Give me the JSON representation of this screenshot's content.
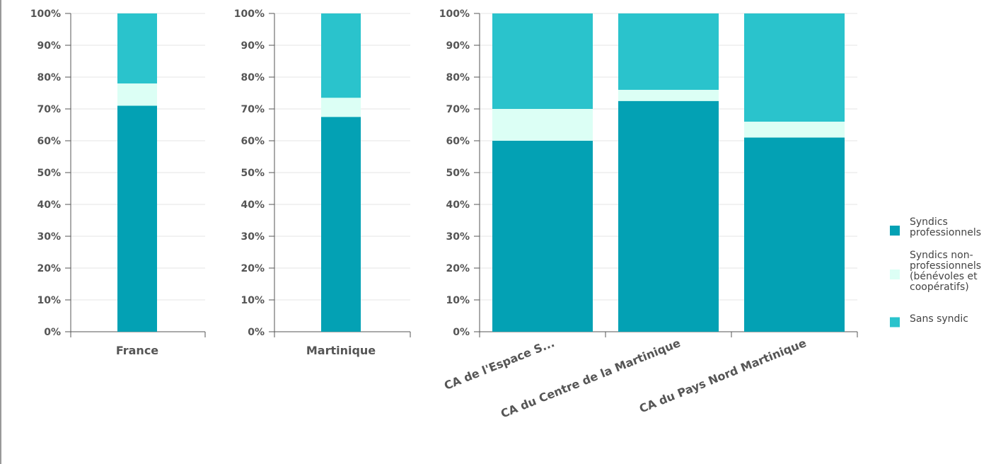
{
  "chart_data": {
    "type": "bar",
    "stacked": true,
    "percent": true,
    "ylim": [
      0,
      100
    ],
    "y_ticks": [
      "0%",
      "10%",
      "20%",
      "30%",
      "40%",
      "50%",
      "60%",
      "70%",
      "80%",
      "90%",
      "100%"
    ],
    "grid": true,
    "legend": "right",
    "series": [
      {
        "name_lines": [
          "Syndics",
          "professionnels"
        ],
        "color": "#03a1b4"
      },
      {
        "name_lines": [
          "Syndics non-",
          "professionnels",
          "(bénévoles et",
          "coopératifs)"
        ],
        "color": "#dcfff5"
      },
      {
        "name_lines": [
          "Sans syndic"
        ],
        "color": "#2ac3cc"
      }
    ],
    "panels": [
      {
        "categories": [
          "France"
        ],
        "values": [
          [
            71
          ],
          [
            7
          ],
          [
            22
          ]
        ]
      },
      {
        "categories": [
          "Martinique"
        ],
        "values": [
          [
            67.5
          ],
          [
            6
          ],
          [
            26.5
          ]
        ]
      },
      {
        "categories": [
          "CA de l'Espace S...",
          "CA du Centre de la Martinique",
          "CA du Pays Nord Martinique"
        ],
        "values": [
          [
            60,
            72.5,
            61
          ],
          [
            10,
            3.5,
            5
          ],
          [
            30,
            24,
            34
          ]
        ]
      }
    ]
  }
}
